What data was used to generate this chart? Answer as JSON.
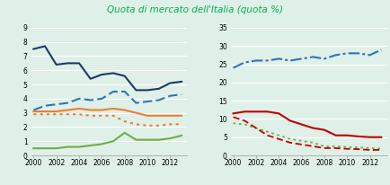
{
  "title": "Quota di mercato dell'Italia (quota %)",
  "title_color": "#00b050",
  "bg_color": "#dff0e8",
  "years": [
    2000,
    2001,
    2002,
    2003,
    2004,
    2005,
    2006,
    2007,
    2008,
    2009,
    2010,
    2011,
    2012,
    2013
  ],
  "left": {
    "ylim": [
      0,
      9
    ],
    "yticks": [
      0,
      1,
      2,
      3,
      4,
      5,
      6,
      7,
      8,
      9
    ],
    "lines": [
      {
        "data": [
          7.5,
          7.7,
          6.4,
          6.5,
          6.5,
          5.4,
          5.7,
          5.8,
          5.6,
          4.6,
          4.6,
          4.7,
          5.1,
          5.2
        ],
        "color": "#1f3864",
        "linestyle": "solid",
        "linewidth": 1.5,
        "dashes": null
      },
      {
        "data": [
          3.2,
          3.5,
          3.6,
          3.7,
          4.0,
          3.9,
          4.0,
          4.5,
          4.5,
          3.7,
          3.8,
          3.9,
          4.2,
          4.3
        ],
        "color": "#2e75b6",
        "linestyle": "dashed",
        "linewidth": 1.5,
        "dashes": [
          5,
          2
        ]
      },
      {
        "data": [
          3.1,
          3.1,
          3.1,
          3.2,
          3.3,
          3.2,
          3.2,
          3.3,
          3.2,
          3.0,
          2.8,
          2.8,
          2.8,
          2.8
        ],
        "color": "#ed7d31",
        "linestyle": "solid",
        "linewidth": 1.5,
        "dashes": null
      },
      {
        "data": [
          2.9,
          2.9,
          2.9,
          2.9,
          2.9,
          2.8,
          2.8,
          2.8,
          2.4,
          2.2,
          2.1,
          2.1,
          2.2,
          2.2
        ],
        "color": "#ed7d31",
        "linestyle": "dotted",
        "linewidth": 1.5,
        "dashes": [
          1.5,
          2
        ]
      },
      {
        "data": [
          0.5,
          0.5,
          0.5,
          0.6,
          0.6,
          0.7,
          0.8,
          1.0,
          1.6,
          1.1,
          1.1,
          1.1,
          1.2,
          1.4
        ],
        "color": "#70ad47",
        "linestyle": "solid",
        "linewidth": 1.5,
        "dashes": null
      }
    ]
  },
  "right": {
    "ylim": [
      0,
      35
    ],
    "yticks": [
      0,
      5,
      10,
      15,
      20,
      25,
      30,
      35
    ],
    "lines": [
      {
        "data": [
          24.0,
          25.5,
          26.0,
          26.0,
          26.5,
          26.0,
          26.5,
          27.0,
          26.5,
          27.5,
          28.0,
          28.0,
          27.5,
          29.0
        ],
        "color": "#2e75b6",
        "linestyle": "dashdot",
        "linewidth": 1.5,
        "dashes": [
          6,
          1.5,
          1.5,
          1.5
        ]
      },
      {
        "data": [
          11.5,
          12.0,
          12.0,
          12.0,
          11.5,
          9.5,
          8.5,
          7.5,
          7.0,
          5.5,
          5.5,
          5.2,
          5.0,
          5.0
        ],
        "color": "#c00000",
        "linestyle": "solid",
        "linewidth": 1.5,
        "dashes": null
      },
      {
        "data": [
          8.8,
          8.5,
          7.5,
          6.5,
          5.5,
          4.5,
          4.0,
          3.5,
          2.5,
          2.5,
          2.3,
          2.2,
          2.0,
          1.8
        ],
        "color": "#70ad47",
        "linestyle": "dotted",
        "linewidth": 1.3,
        "dashes": [
          1.5,
          2
        ]
      },
      {
        "data": [
          10.5,
          9.5,
          7.5,
          5.5,
          4.5,
          3.5,
          3.0,
          2.5,
          2.0,
          2.0,
          1.8,
          1.7,
          1.5,
          1.5
        ],
        "color": "#c00000",
        "linestyle": "dashed",
        "linewidth": 1.3,
        "dashes": [
          4,
          2
        ]
      }
    ]
  },
  "xticks": [
    2000,
    2002,
    2004,
    2006,
    2008,
    2010,
    2012
  ],
  "tick_fontsize": 5.5,
  "title_fontsize": 7.5
}
